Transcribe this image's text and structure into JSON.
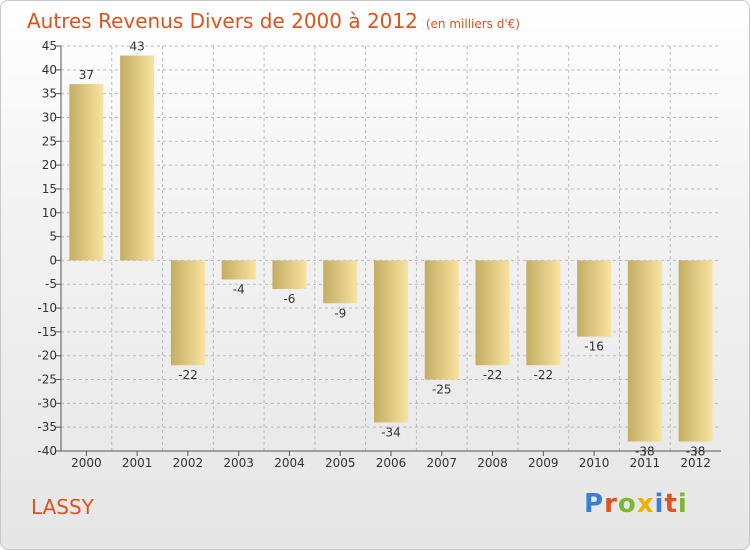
{
  "title": "Autres Revenus Divers de 2000 à 2012",
  "subtitle": "(en milliers d'€)",
  "location_label": "LASSY",
  "logo_text": "Proxiti",
  "colors": {
    "title": "#e0521c",
    "bar_dark": "#c4ad63",
    "bar_light": "#f8e3a0",
    "grid": "#bbbbbb",
    "axis": "#555555"
  },
  "chart_data": {
    "type": "bar",
    "categories": [
      "2000",
      "2001",
      "2002",
      "2003",
      "2004",
      "2005",
      "2006",
      "2007",
      "2008",
      "2009",
      "2010",
      "2011",
      "2012"
    ],
    "values": [
      37,
      43,
      -22,
      -4,
      -6,
      -9,
      -34,
      -25,
      -22,
      -22,
      -16,
      -38,
      -38
    ],
    "ylim": [
      -40,
      45
    ],
    "yticks": [
      45,
      40,
      35,
      30,
      25,
      20,
      15,
      10,
      5,
      0,
      -5,
      -10,
      -15,
      -20,
      -25,
      -30,
      -35,
      -40
    ],
    "grid": true
  }
}
